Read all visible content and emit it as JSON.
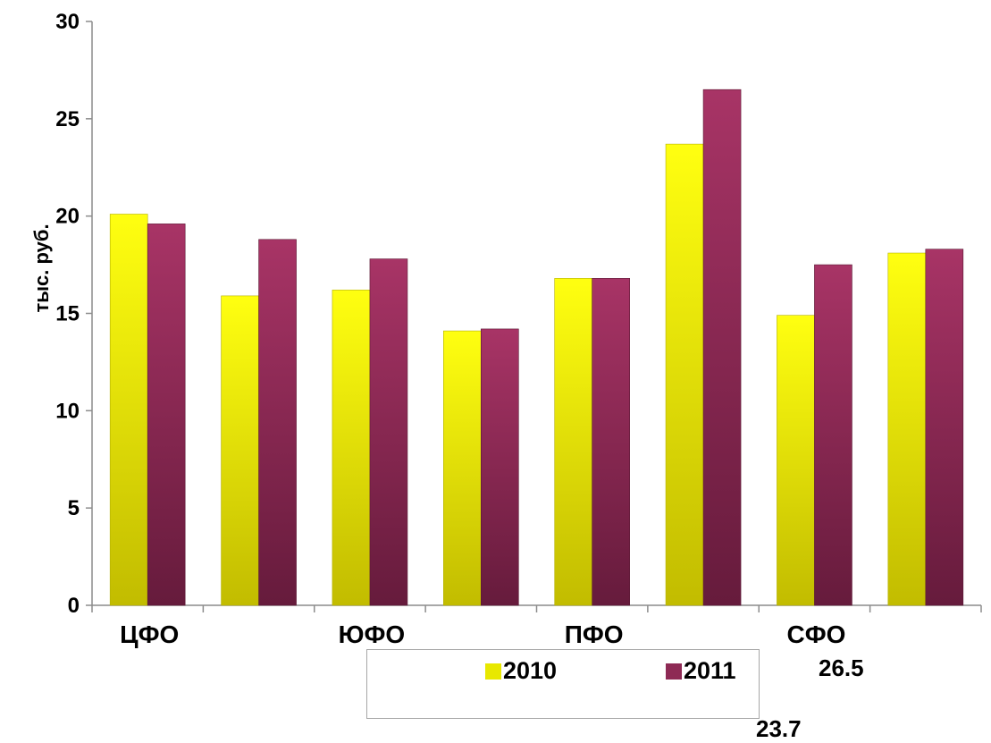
{
  "chart_data": {
    "type": "bar",
    "title": "",
    "xlabel": "",
    "ylabel": "тыс. руб.",
    "ylim": [
      0,
      30
    ],
    "yticks": [
      0,
      5,
      10,
      15,
      20,
      25,
      30
    ],
    "grid": false,
    "legend_position": "bottom",
    "categories": [
      "ЦФО",
      "",
      "ЮФО",
      "",
      "ПФО",
      "",
      "СФО",
      ""
    ],
    "series": [
      {
        "name": "2010",
        "values": [
          20.1,
          15.9,
          16.2,
          14.1,
          16.8,
          23.7,
          14.9,
          18.1
        ],
        "color": "#e8e800",
        "color_dark": "#c9c400"
      },
      {
        "name": "2011",
        "values": [
          19.6,
          18.8,
          17.8,
          14.2,
          16.8,
          26.5,
          17.5,
          18.3
        ],
        "color": "#9b2d5e",
        "color_dark": "#6a1f41"
      }
    ],
    "annotations": [
      "26.5",
      "23.7"
    ]
  }
}
